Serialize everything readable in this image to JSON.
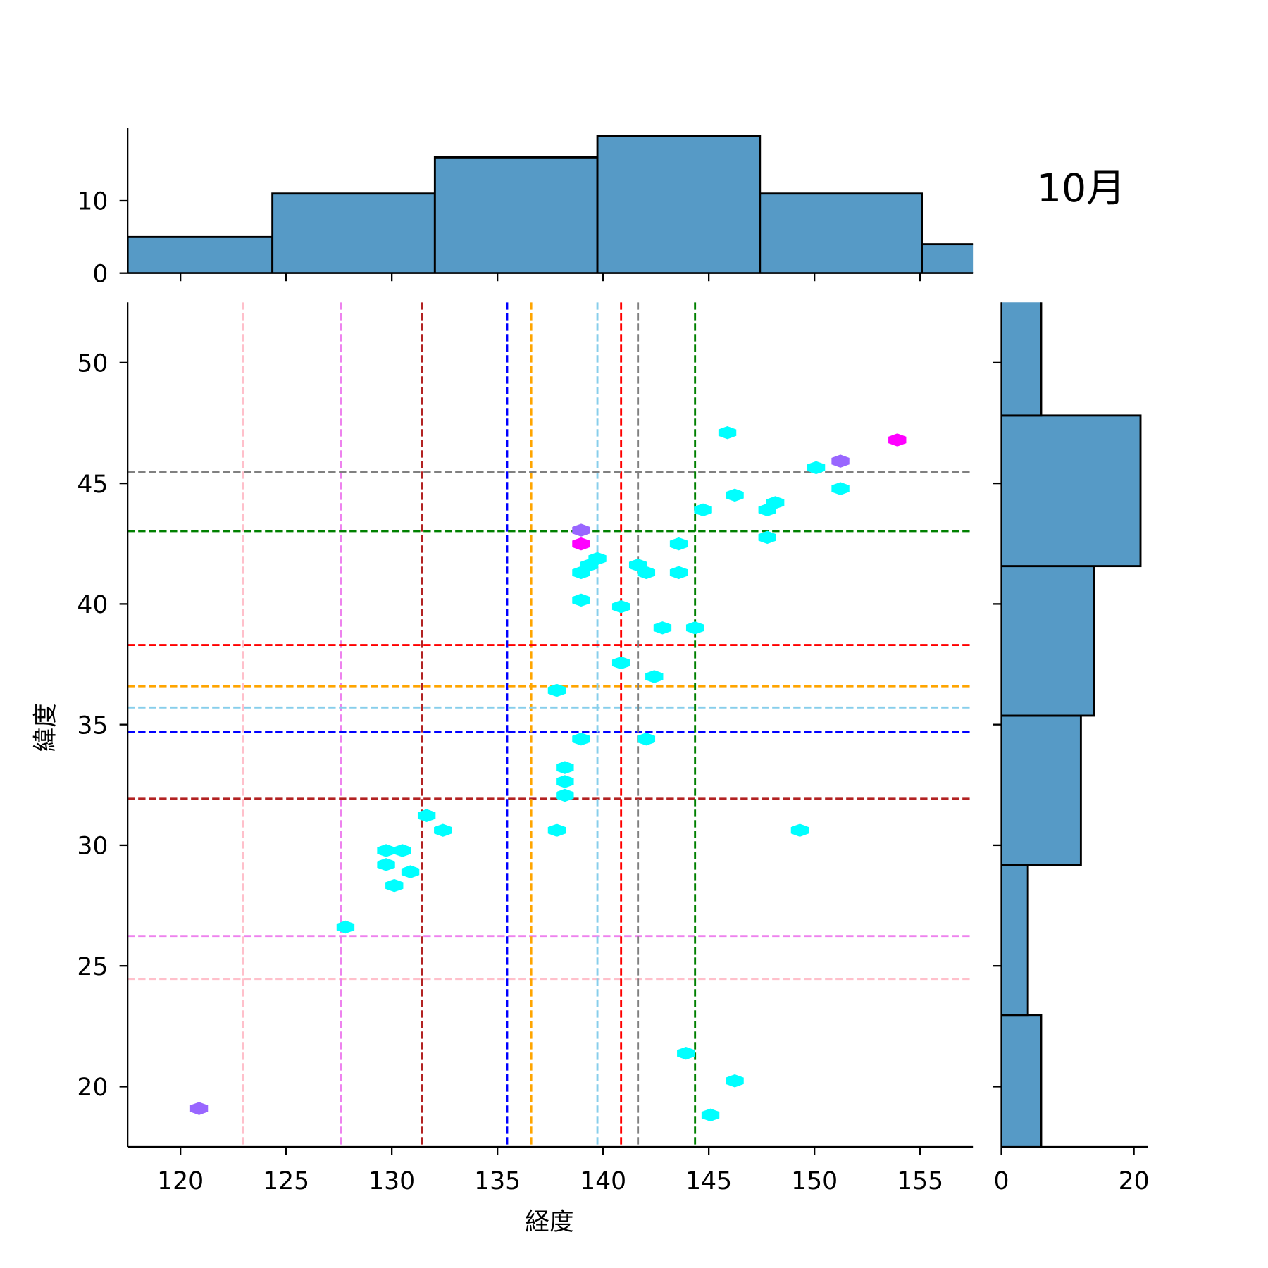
{
  "chart_data": {
    "type": "scatter",
    "subtype": "jointplot-hexbin",
    "title": "10月",
    "xlabel": "経度",
    "ylabel": "緯度",
    "xlim": [
      117.5,
      157.5
    ],
    "ylim": [
      17.5,
      52.5
    ],
    "xticks": [
      120,
      125,
      130,
      135,
      140,
      145,
      150,
      155
    ],
    "yticks": [
      20,
      25,
      30,
      35,
      40,
      45,
      50
    ],
    "hex_colors": {
      "1": "#00ffff",
      "2": "#9966ff",
      "3": "#ff00ff"
    },
    "points": [
      {
        "lon": 145.88,
        "lat": 47.1,
        "count": 1
      },
      {
        "lon": 153.92,
        "lat": 46.8,
        "count": 3
      },
      {
        "lon": 151.23,
        "lat": 45.92,
        "count": 2
      },
      {
        "lon": 150.08,
        "lat": 45.65,
        "count": 1
      },
      {
        "lon": 151.23,
        "lat": 44.78,
        "count": 1
      },
      {
        "lon": 146.23,
        "lat": 44.51,
        "count": 1
      },
      {
        "lon": 144.73,
        "lat": 43.9,
        "count": 1
      },
      {
        "lon": 147.77,
        "lat": 43.9,
        "count": 1
      },
      {
        "lon": 148.15,
        "lat": 44.2,
        "count": 1
      },
      {
        "lon": 147.77,
        "lat": 42.76,
        "count": 1
      },
      {
        "lon": 138.96,
        "lat": 43.06,
        "count": 2
      },
      {
        "lon": 138.96,
        "lat": 42.49,
        "count": 3
      },
      {
        "lon": 143.58,
        "lat": 42.49,
        "count": 1
      },
      {
        "lon": 139.73,
        "lat": 41.88,
        "count": 1
      },
      {
        "lon": 139.35,
        "lat": 41.61,
        "count": 1
      },
      {
        "lon": 138.96,
        "lat": 41.3,
        "count": 1
      },
      {
        "lon": 141.65,
        "lat": 41.61,
        "count": 1
      },
      {
        "lon": 142.04,
        "lat": 41.3,
        "count": 1
      },
      {
        "lon": 143.58,
        "lat": 41.3,
        "count": 1
      },
      {
        "lon": 138.96,
        "lat": 40.16,
        "count": 1
      },
      {
        "lon": 140.85,
        "lat": 39.89,
        "count": 1
      },
      {
        "lon": 142.81,
        "lat": 39.01,
        "count": 1
      },
      {
        "lon": 144.35,
        "lat": 39.01,
        "count": 1
      },
      {
        "lon": 140.85,
        "lat": 37.56,
        "count": 1
      },
      {
        "lon": 142.42,
        "lat": 36.99,
        "count": 1
      },
      {
        "lon": 137.81,
        "lat": 36.42,
        "count": 1
      },
      {
        "lon": 138.96,
        "lat": 34.4,
        "count": 1
      },
      {
        "lon": 142.04,
        "lat": 34.4,
        "count": 1
      },
      {
        "lon": 138.19,
        "lat": 33.22,
        "count": 1
      },
      {
        "lon": 138.19,
        "lat": 32.64,
        "count": 1
      },
      {
        "lon": 138.19,
        "lat": 32.07,
        "count": 1
      },
      {
        "lon": 131.65,
        "lat": 31.23,
        "count": 1
      },
      {
        "lon": 132.42,
        "lat": 30.62,
        "count": 1
      },
      {
        "lon": 137.81,
        "lat": 30.62,
        "count": 1
      },
      {
        "lon": 149.31,
        "lat": 30.62,
        "count": 1
      },
      {
        "lon": 129.73,
        "lat": 29.78,
        "count": 1
      },
      {
        "lon": 130.5,
        "lat": 29.78,
        "count": 1
      },
      {
        "lon": 129.73,
        "lat": 29.2,
        "count": 1
      },
      {
        "lon": 130.88,
        "lat": 28.9,
        "count": 1
      },
      {
        "lon": 130.12,
        "lat": 28.33,
        "count": 1
      },
      {
        "lon": 127.81,
        "lat": 26.61,
        "count": 1
      },
      {
        "lon": 143.92,
        "lat": 21.38,
        "count": 1
      },
      {
        "lon": 146.23,
        "lat": 20.24,
        "count": 1
      },
      {
        "lon": 145.08,
        "lat": 18.82,
        "count": 1
      },
      {
        "lon": 120.88,
        "lat": 19.09,
        "count": 2
      }
    ],
    "reference_lines": [
      {
        "color": "#ffc0cb",
        "lon": 122.96,
        "lat": 24.46
      },
      {
        "color": "#ee82ee",
        "lon": 127.6,
        "lat": 26.24
      },
      {
        "color": "#b22222",
        "lon": 131.42,
        "lat": 31.93
      },
      {
        "color": "#0000ff",
        "lon": 135.46,
        "lat": 34.7
      },
      {
        "color": "#ffa500",
        "lon": 136.6,
        "lat": 36.59
      },
      {
        "color": "#87ceeb",
        "lon": 139.73,
        "lat": 35.71
      },
      {
        "color": "#ff0000",
        "lon": 140.85,
        "lat": 38.3
      },
      {
        "color": "#808080",
        "lon": 141.65,
        "lat": 45.48
      },
      {
        "color": "#008000",
        "lon": 144.35,
        "lat": 43.02
      }
    ],
    "marginal_x": {
      "bin_edges": [
        117.5,
        124.35,
        132.04,
        139.73,
        147.42,
        155.08,
        162.77
      ],
      "counts": [
        5,
        11,
        16,
        19,
        11,
        4
      ],
      "ylim": [
        0,
        20
      ],
      "yticks": [
        0,
        10
      ]
    },
    "marginal_y": {
      "bin_edges": [
        16.77,
        22.97,
        29.17,
        35.37,
        41.57,
        47.81,
        54.01
      ],
      "counts": [
        6,
        4,
        12,
        14,
        21,
        6
      ],
      "xlim": [
        0,
        21.5
      ],
      "xticks": [
        0,
        20
      ]
    },
    "bar_color": "#569ac6"
  }
}
